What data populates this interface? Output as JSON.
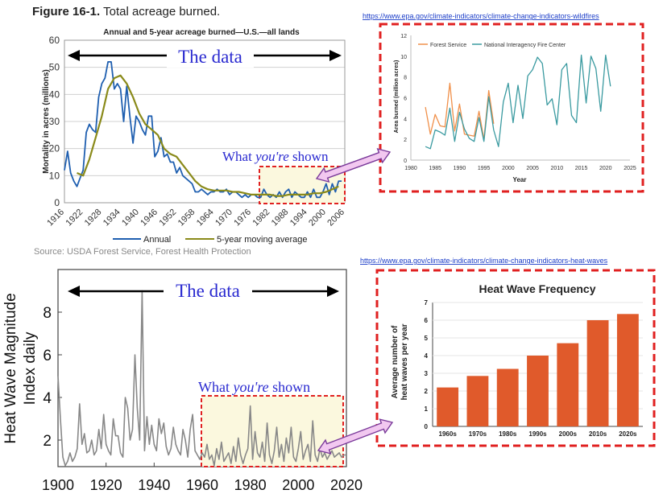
{
  "figure_title_bold": "Figure 16-1.",
  "figure_title_rest": " Total acreage burned.",
  "link_wildfires": "https://www.epa.gov/climate-indicators/climate-change-indicators-wildfires",
  "link_heatwaves": "https://www.epa.gov/climate-indicators/climate-change-indicators-heat-waves",
  "callout_the_data": "The data",
  "callout_shown_pre": "What ",
  "callout_shown_em": "you're",
  "callout_shown_post": " shown",
  "colors": {
    "annual": "#1f5fb0",
    "avg": "#8a8a1a",
    "forest": "#f0904a",
    "nifc": "#3a9aa0",
    "bar": "#e05a2b",
    "dash": "#e02020",
    "arrow_fill": "#f2c8f0",
    "arrow_stroke": "#7a3a9a",
    "highlight": "#fbf8de",
    "callout": "#2a2ad0"
  },
  "chart_data": [
    {
      "type": "line",
      "title": "Annual and 5-year acreage burned—U.S.—all lands",
      "ylabel": "Mortality in acres (millions)",
      "xlabel": "",
      "xlim": [
        1916,
        2006
      ],
      "ylim": [
        0,
        60
      ],
      "yticks": [
        0,
        10,
        20,
        30,
        40,
        50,
        60
      ],
      "xticks": [
        1916,
        1922,
        1928,
        1934,
        1940,
        1946,
        1952,
        1958,
        1964,
        1970,
        1976,
        1982,
        1988,
        1994,
        2000,
        2006
      ],
      "source": "Source: USDA Forest Service, Forest Health Protection",
      "series": [
        {
          "name": "Annual",
          "x": [
            1916,
            1917,
            1918,
            1919,
            1920,
            1921,
            1922,
            1923,
            1924,
            1925,
            1926,
            1927,
            1928,
            1929,
            1930,
            1931,
            1932,
            1933,
            1934,
            1935,
            1936,
            1937,
            1938,
            1939,
            1940,
            1941,
            1942,
            1943,
            1944,
            1945,
            1946,
            1947,
            1948,
            1949,
            1950,
            1951,
            1952,
            1953,
            1954,
            1955,
            1956,
            1957,
            1958,
            1959,
            1960,
            1961,
            1962,
            1963,
            1964,
            1965,
            1966,
            1967,
            1968,
            1969,
            1970,
            1971,
            1972,
            1973,
            1974,
            1975,
            1976,
            1977,
            1978,
            1979,
            1980,
            1981,
            1982,
            1983,
            1984,
            1985,
            1986,
            1987,
            1988,
            1989,
            1990,
            1991,
            1992,
            1993,
            1994,
            1995,
            1996,
            1997,
            1998,
            1999,
            2000,
            2001,
            2002,
            2003,
            2004,
            2005
          ],
          "values": [
            12,
            19,
            11,
            8,
            6,
            9,
            12,
            26,
            29,
            27,
            26,
            39,
            44,
            46,
            52,
            52,
            42,
            44,
            42,
            30,
            43,
            32,
            22,
            32,
            30,
            27,
            25,
            32,
            32,
            17,
            19,
            24,
            17,
            18,
            15,
            15,
            11,
            13,
            10,
            9,
            8,
            7,
            4,
            4,
            5,
            4,
            3,
            4,
            4,
            5,
            4,
            4,
            5,
            3,
            4,
            4,
            3,
            2,
            3,
            2,
            3,
            3,
            2,
            2,
            5,
            3,
            2,
            3,
            2,
            4,
            2,
            4,
            5,
            2,
            4,
            3,
            2,
            2,
            4,
            2,
            5,
            2,
            2,
            4,
            7,
            3,
            7,
            4,
            8,
            8
          ]
        },
        {
          "name": "5-year moving average",
          "x": [
            1920,
            1922,
            1924,
            1926,
            1928,
            1930,
            1932,
            1934,
            1936,
            1938,
            1940,
            1942,
            1944,
            1946,
            1948,
            1950,
            1952,
            1954,
            1956,
            1958,
            1960,
            1962,
            1964,
            1966,
            1968,
            1970,
            1972,
            1974,
            1976,
            1978,
            1980,
            1982,
            1984,
            1986,
            1988,
            1990,
            1992,
            1994,
            1996,
            1998,
            2000,
            2002,
            2004
          ],
          "values": [
            11,
            10,
            16,
            24,
            32,
            42,
            46,
            47,
            44,
            39,
            33,
            29,
            27,
            25,
            20,
            18,
            17,
            14,
            11,
            8,
            6,
            5,
            4.5,
            4.5,
            4.5,
            4,
            4,
            3.5,
            3,
            3,
            3,
            3,
            2.5,
            2.5,
            3,
            3,
            3,
            3,
            3.5,
            3.5,
            4,
            5,
            6
          ]
        }
      ]
    },
    {
      "type": "line",
      "title": "",
      "ylabel": "Area burned (million acres)",
      "xlabel": "Year",
      "xlim": [
        1980,
        2025
      ],
      "ylim": [
        0,
        12
      ],
      "yticks": [
        0,
        2,
        4,
        6,
        8,
        10,
        12
      ],
      "xticks": [
        1980,
        1985,
        1990,
        1995,
        2000,
        2005,
        2010,
        2015,
        2020,
        2025
      ],
      "series": [
        {
          "name": "Forest Service",
          "x": [
            1983,
            1984,
            1985,
            1986,
            1987,
            1988,
            1989,
            1990,
            1991,
            1992,
            1993,
            1994,
            1995,
            1996,
            1997
          ],
          "values": [
            5.1,
            2.5,
            4.4,
            3.3,
            3.2,
            7.4,
            2.8,
            5.4,
            2.5,
            2.4,
            2.3,
            4.7,
            2.0,
            6.7,
            3.5
          ]
        },
        {
          "name": "National Interagency Fire Center",
          "x": [
            1983,
            1984,
            1985,
            1986,
            1987,
            1988,
            1989,
            1990,
            1991,
            1992,
            1993,
            1994,
            1995,
            1996,
            1997,
            1998,
            1999,
            2000,
            2001,
            2002,
            2003,
            2004,
            2005,
            2006,
            2007,
            2008,
            2009,
            2010,
            2011,
            2012,
            2013,
            2014,
            2015,
            2016,
            2017,
            2018,
            2019,
            2020,
            2021
          ],
          "values": [
            1.3,
            1.1,
            2.9,
            2.7,
            2.4,
            5.0,
            1.8,
            4.6,
            3.0,
            2.1,
            1.8,
            4.1,
            1.8,
            6.1,
            2.9,
            1.3,
            5.6,
            7.4,
            3.6,
            7.2,
            4.0,
            8.1,
            8.7,
            9.9,
            9.3,
            5.3,
            5.9,
            3.4,
            8.7,
            9.3,
            4.3,
            3.6,
            10.1,
            5.5,
            10.0,
            8.8,
            4.7,
            10.1,
            7.1
          ]
        }
      ]
    },
    {
      "type": "line",
      "title": "",
      "ylabel": "Heat Wave Magnitude Index daily",
      "xlabel": "",
      "xlim": [
        1900,
        2020
      ],
      "ylim": [
        0,
        10
      ],
      "yticks": [
        2,
        4,
        6,
        8
      ],
      "xticks": [
        1900,
        1920,
        1940,
        1960,
        1980,
        2000,
        2020
      ],
      "series": [
        {
          "name": "",
          "x": [
            1900,
            1901,
            1902,
            1903,
            1904,
            1905,
            1906,
            1907,
            1908,
            1909,
            1910,
            1911,
            1912,
            1913,
            1914,
            1915,
            1916,
            1917,
            1918,
            1919,
            1920,
            1921,
            1922,
            1923,
            1924,
            1925,
            1926,
            1927,
            1928,
            1929,
            1930,
            1931,
            1932,
            1933,
            1934,
            1935,
            1936,
            1937,
            1938,
            1939,
            1940,
            1941,
            1942,
            1943,
            1944,
            1945,
            1946,
            1947,
            1948,
            1949,
            1950,
            1951,
            1952,
            1953,
            1954,
            1955,
            1956,
            1957,
            1958,
            1959,
            1960,
            1961,
            1962,
            1963,
            1964,
            1965,
            1966,
            1967,
            1968,
            1969,
            1970,
            1971,
            1972,
            1973,
            1974,
            1975,
            1976,
            1977,
            1978,
            1979,
            1980,
            1981,
            1982,
            1983,
            1984,
            1985,
            1986,
            1987,
            1988,
            1989,
            1990,
            1991,
            1992,
            1993,
            1994,
            1995,
            1996,
            1997,
            1998,
            1999,
            2000,
            2001,
            2002,
            2003,
            2004,
            2005,
            2006,
            2007,
            2008,
            2009,
            2010,
            2011,
            2012,
            2013,
            2014,
            2015,
            2016,
            2017,
            2018,
            2019,
            2020
          ],
          "values": [
            5,
            3,
            1.2,
            0.8,
            1.0,
            1.4,
            1.0,
            1.2,
            1.6,
            3.7,
            1.8,
            2.3,
            1.4,
            1.5,
            2.0,
            1.3,
            1.5,
            2.5,
            1.6,
            3.2,
            1.8,
            1.5,
            1.3,
            3.0,
            2.2,
            2.2,
            1.4,
            1.2,
            4.0,
            3.5,
            2.0,
            2.5,
            6.0,
            3.5,
            2.0,
            9.0,
            1.5,
            3.1,
            1.8,
            2.7,
            1.8,
            1.5,
            3.0,
            2.3,
            2.8,
            1.7,
            1.3,
            1.6,
            2.6,
            1.8,
            1.5,
            1.3,
            2.5,
            2.0,
            1.2,
            2.5,
            3.2,
            1.5,
            1.3,
            1.1,
            1.4,
            1.2,
            1.8,
            1.1,
            1.3,
            0.8,
            1.6,
            1.1,
            1.9,
            1.0,
            1.2,
            1.4,
            0.9,
            1.7,
            1.0,
            2.1,
            1.3,
            0.9,
            1.3,
            1.6,
            3.6,
            1.1,
            2.4,
            1.4,
            1.2,
            1.9,
            1.0,
            2.8,
            1.3,
            0.9,
            1.5,
            2.6,
            1.2,
            1.8,
            1.0,
            2.1,
            1.4,
            2.6,
            1.2,
            1.0,
            1.6,
            2.4,
            1.1,
            1.5,
            1.8,
            1.0,
            2.9,
            1.3,
            1.0,
            1.6,
            1.2,
            1.4,
            1.1,
            1.3,
            1.5,
            1.2,
            1.3,
            1.4,
            1.2,
            1.3,
            1.3
          ]
        }
      ]
    },
    {
      "type": "bar",
      "title": "Heat Wave Frequency",
      "ylabel": "Average number of heat waves per year",
      "xlabel": "",
      "ylim": [
        0,
        7
      ],
      "yticks": [
        0,
        1,
        2,
        3,
        4,
        5,
        6,
        7
      ],
      "categories": [
        "1960s",
        "1970s",
        "1980s",
        "1990s",
        "2000s",
        "2010s",
        "2020s"
      ],
      "values": [
        2.2,
        2.85,
        3.25,
        4.0,
        4.7,
        6.0,
        6.35
      ]
    }
  ]
}
